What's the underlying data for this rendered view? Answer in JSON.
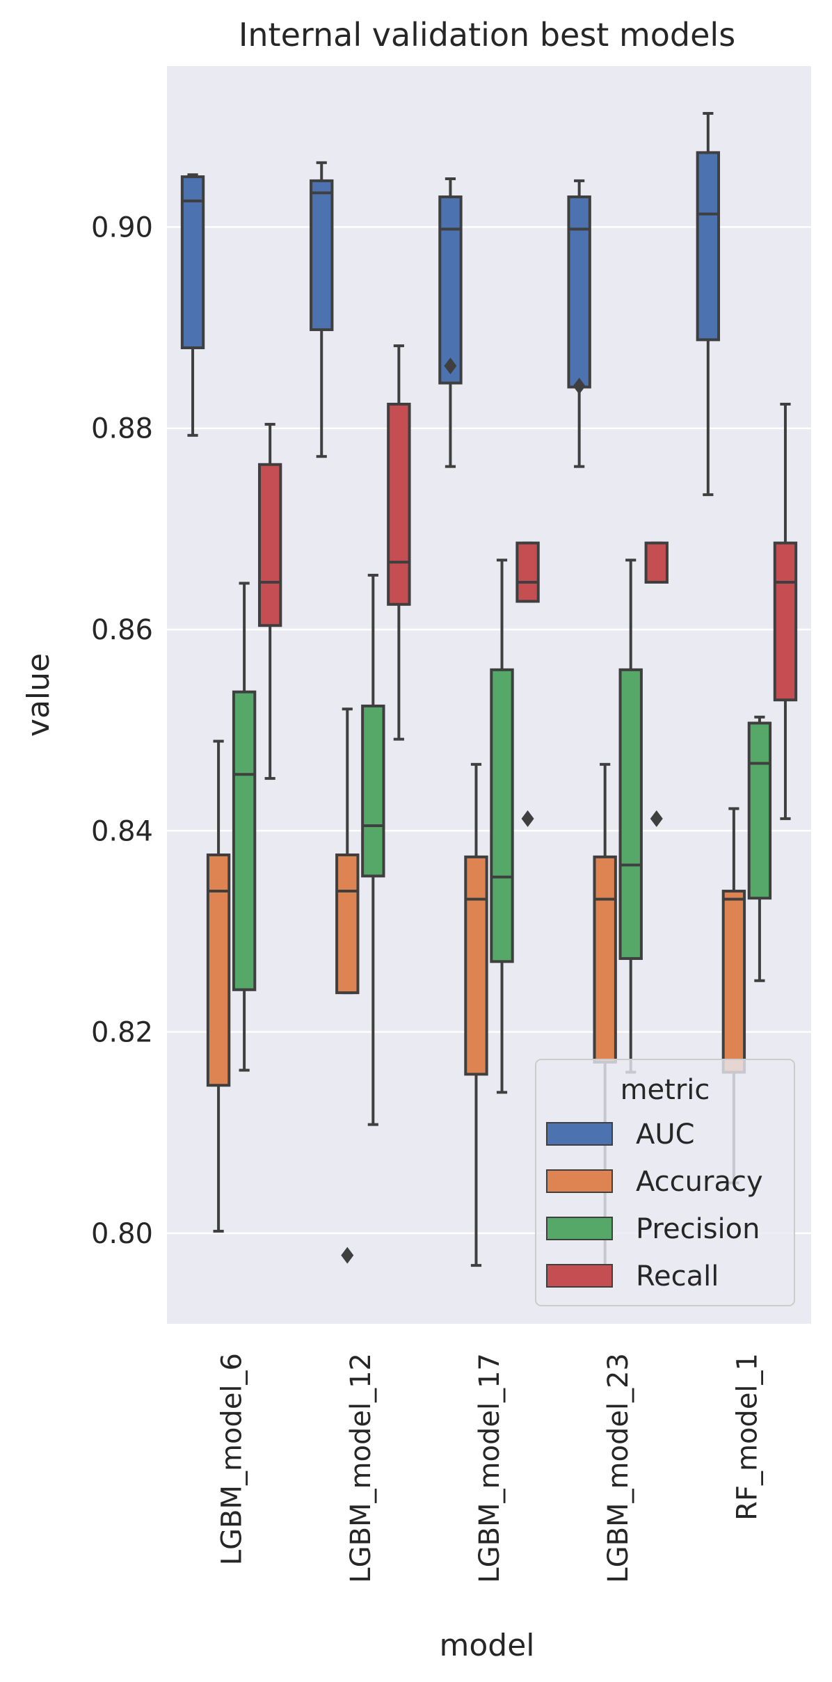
{
  "chart_data": {
    "type": "box",
    "title": "Internal validation best models",
    "xlabel": "model",
    "ylabel": "value",
    "ylim": [
      0.791,
      0.916
    ],
    "yticks": [
      "0.80",
      "0.82",
      "0.84",
      "0.86",
      "0.88",
      "0.90"
    ],
    "ytick_values": [
      0.8,
      0.82,
      0.84,
      0.86,
      0.88,
      0.9
    ],
    "grid": true,
    "categories": [
      "LGBM_model_6",
      "LGBM_model_12",
      "LGBM_model_17",
      "LGBM_model_23",
      "RF_model_1"
    ],
    "legend": {
      "title": "metric",
      "placement": "lower-right"
    },
    "series": [
      {
        "name": "AUC",
        "color": "#4c72b0",
        "boxes": [
          {
            "whislo": 0.8793,
            "q1": 0.888,
            "med": 0.9026,
            "q3": 0.905,
            "whishi": 0.9052,
            "fliers": []
          },
          {
            "whislo": 0.8772,
            "q1": 0.8898,
            "med": 0.9034,
            "q3": 0.9046,
            "whishi": 0.9064,
            "fliers": []
          },
          {
            "whislo": 0.8762,
            "q1": 0.8845,
            "med": 0.8998,
            "q3": 0.903,
            "whishi": 0.9048,
            "fliers": [
              0.8862
            ]
          },
          {
            "whislo": 0.8762,
            "q1": 0.8841,
            "med": 0.8998,
            "q3": 0.903,
            "whishi": 0.9046,
            "fliers": [
              0.8842
            ]
          },
          {
            "whislo": 0.8734,
            "q1": 0.8888,
            "med": 0.9013,
            "q3": 0.9074,
            "whishi": 0.9113,
            "fliers": []
          }
        ]
      },
      {
        "name": "Accuracy",
        "color": "#dd8452",
        "boxes": [
          {
            "whislo": 0.8002,
            "q1": 0.8147,
            "med": 0.834,
            "q3": 0.8376,
            "whishi": 0.8489,
            "fliers": []
          },
          {
            "whislo": 0.8239,
            "q1": 0.8239,
            "med": 0.834,
            "q3": 0.8376,
            "whishi": 0.8521,
            "fliers": [
              0.7978
            ]
          },
          {
            "whislo": 0.7968,
            "q1": 0.8158,
            "med": 0.8332,
            "q3": 0.8374,
            "whishi": 0.8466,
            "fliers": []
          },
          {
            "whislo": 0.7968,
            "q1": 0.817,
            "med": 0.8332,
            "q3": 0.8374,
            "whishi": 0.8466,
            "fliers": []
          },
          {
            "whislo": 0.805,
            "q1": 0.816,
            "med": 0.8332,
            "q3": 0.834,
            "whishi": 0.8422,
            "fliers": []
          }
        ]
      },
      {
        "name": "Precision",
        "color": "#55a868",
        "boxes": [
          {
            "whislo": 0.8162,
            "q1": 0.8242,
            "med": 0.8456,
            "q3": 0.8538,
            "whishi": 0.8646,
            "fliers": []
          },
          {
            "whislo": 0.8108,
            "q1": 0.8355,
            "med": 0.8405,
            "q3": 0.8524,
            "whishi": 0.8654,
            "fliers": []
          },
          {
            "whislo": 0.814,
            "q1": 0.827,
            "med": 0.8354,
            "q3": 0.856,
            "whishi": 0.8669,
            "fliers": []
          },
          {
            "whislo": 0.816,
            "q1": 0.8273,
            "med": 0.8366,
            "q3": 0.856,
            "whishi": 0.8669,
            "fliers": []
          },
          {
            "whislo": 0.8251,
            "q1": 0.8333,
            "med": 0.8467,
            "q3": 0.8507,
            "whishi": 0.8513,
            "fliers": []
          }
        ]
      },
      {
        "name": "Recall",
        "color": "#c44e52",
        "boxes": [
          {
            "whislo": 0.8452,
            "q1": 0.8604,
            "med": 0.8647,
            "q3": 0.8764,
            "whishi": 0.8804,
            "fliers": []
          },
          {
            "whislo": 0.8491,
            "q1": 0.8625,
            "med": 0.8667,
            "q3": 0.8824,
            "whishi": 0.8882,
            "fliers": []
          },
          {
            "whislo": 0.8628,
            "q1": 0.8628,
            "med": 0.8647,
            "q3": 0.8686,
            "whishi": 0.8686,
            "fliers": [
              0.8412
            ]
          },
          {
            "whislo": 0.8647,
            "q1": 0.8647,
            "med": 0.8647,
            "q3": 0.8686,
            "whishi": 0.8686,
            "fliers": [
              0.8412
            ]
          },
          {
            "whislo": 0.8412,
            "q1": 0.853,
            "med": 0.8647,
            "q3": 0.8686,
            "whishi": 0.8824,
            "fliers": []
          }
        ]
      }
    ]
  }
}
